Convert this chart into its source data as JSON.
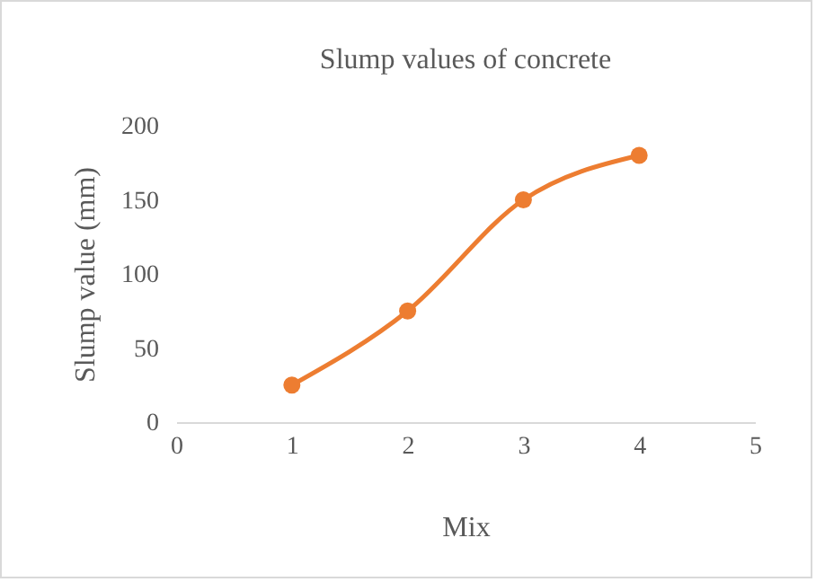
{
  "chart_data": {
    "type": "line",
    "title": "Slump values of concrete",
    "xlabel": "Mix",
    "ylabel": "Slump value (mm)",
    "x": [
      1,
      2,
      3,
      4
    ],
    "series": [
      {
        "color": "#ed7d31",
        "values": [
          25,
          75,
          150,
          180
        ]
      }
    ],
    "xlim": [
      0,
      5
    ],
    "xticks": [
      0,
      1,
      2,
      3,
      4,
      5
    ],
    "ylim": [
      0,
      200
    ],
    "yticks": [
      0,
      50,
      100,
      150,
      200
    ],
    "marker": "circle"
  }
}
